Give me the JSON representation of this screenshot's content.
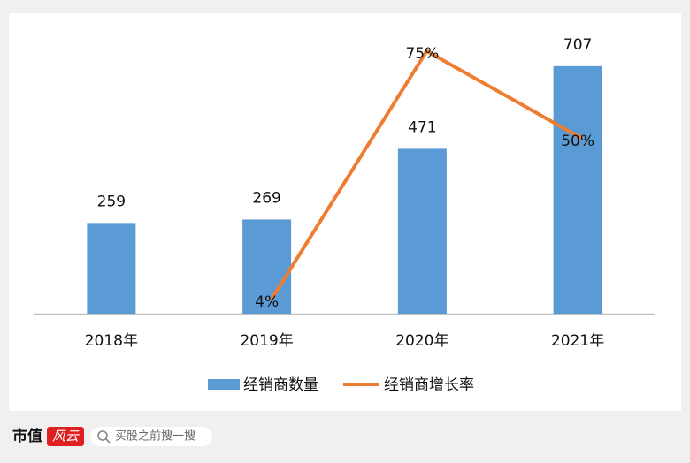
{
  "chart_data": {
    "type": "bar_line",
    "categories": [
      "2018年",
      "2019年",
      "2020年",
      "2021年"
    ],
    "series": [
      {
        "name": "经销商数量",
        "color": "#5b9bd5",
        "type": "bar",
        "values": [
          259,
          269,
          471,
          707
        ]
      },
      {
        "name": "经销商增长率",
        "color": "#ed7d31",
        "type": "line",
        "axis": "y2",
        "values": [
          null,
          4,
          75,
          50
        ],
        "value_labels": [
          null,
          "4%",
          "75%",
          "50%"
        ]
      }
    ],
    "ylim": [
      0,
      800
    ],
    "y2lim": [
      0,
      80
    ],
    "legend": "bottom"
  },
  "footer": {
    "logo_main": "市值",
    "logo_accent": "风云",
    "search": "买股之前搜一搜"
  }
}
